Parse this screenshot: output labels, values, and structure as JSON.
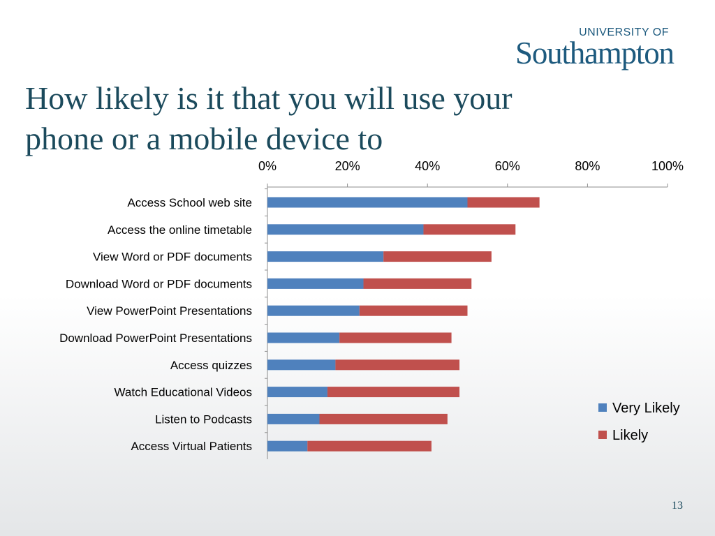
{
  "slide": {
    "title_line1": "How likely is it that you will use your",
    "title_line2": "phone or a mobile device to",
    "page_number": "13"
  },
  "logo": {
    "top_text": "UNIVERSITY OF",
    "main_text": "Southampton"
  },
  "colors": {
    "very_likely": "#4f81bd",
    "likely": "#c0504d",
    "title": "#1b4a5c",
    "logo": "#1d5a7e"
  },
  "chart_data": {
    "type": "bar",
    "orientation": "horizontal",
    "stacked": true,
    "categories": [
      "Access School web site",
      "Access the online timetable",
      "View Word or PDF documents",
      "Download Word or PDF documents",
      "View PowerPoint Presentations",
      "Download PowerPoint Presentations",
      "Access quizzes",
      "Watch Educational Videos",
      "Listen to Podcasts",
      "Access Virtual Patients"
    ],
    "series": [
      {
        "name": "Very Likely",
        "values": [
          50,
          39,
          29,
          24,
          23,
          18,
          17,
          15,
          13,
          10
        ]
      },
      {
        "name": "Likely",
        "values": [
          18,
          23,
          27,
          27,
          27,
          28,
          31,
          33,
          32,
          31
        ]
      }
    ],
    "xlim": [
      0,
      100
    ],
    "xticks": [
      "0%",
      "20%",
      "40%",
      "60%",
      "80%",
      "100%"
    ],
    "axis_position": "top",
    "grid": false,
    "legend_position": "right"
  }
}
